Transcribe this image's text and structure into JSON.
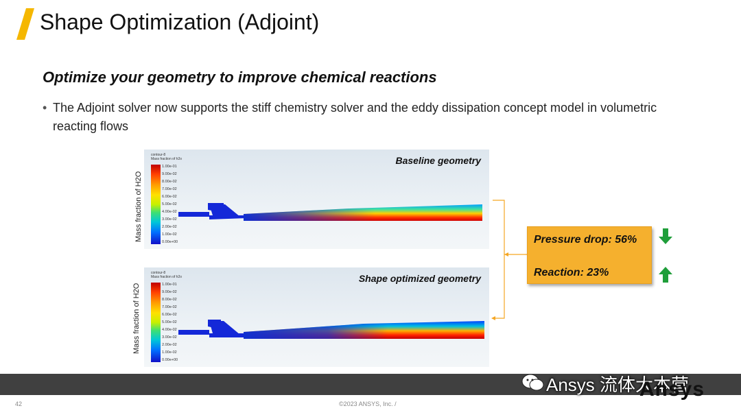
{
  "slide": {
    "title": "Shape Optimization (Adjoint)",
    "subtitle": "Optimize your geometry to improve chemical reactions",
    "bullet": "The Adjoint solver now supports the stiff chemistry solver and the eddy dissipation concept model in volumetric reacting flows",
    "bullet_symbol": "•",
    "accent_color": "#f5b700"
  },
  "panels": [
    {
      "label": "Baseline geometry",
      "y_label": "Mass fraction of H2O",
      "legend_head": [
        "contour-8",
        "Mass fraction of h2o"
      ],
      "ticks": [
        "1.00e-01",
        "9.00e-02",
        "8.00e-02",
        "7.00e-02",
        "6.00e-02",
        "5.00e-02",
        "4.00e-02",
        "3.00e-02",
        "2.00e-02",
        "1.00e-02",
        "0.00e+00"
      ]
    },
    {
      "label": "Shape optimized geometry",
      "y_label": "Mass fraction of H2O",
      "legend_head": [
        "contour-8",
        "Mass fraction of h2o"
      ],
      "ticks": [
        "1.00e-01",
        "9.00e-02",
        "8.00e-02",
        "7.00e-02",
        "6.00e-02",
        "5.00e-02",
        "4.00e-02",
        "3.00e-02",
        "2.00e-02",
        "1.00e-02",
        "0.00e+00"
      ]
    }
  ],
  "results": {
    "pressure_drop": "Pressure drop: 56%",
    "reaction": "Reaction: 23%",
    "down_color": "#1f9e3a",
    "up_color": "#1f9e3a",
    "box_color": "#f5b02e"
  },
  "footer": {
    "page_number": "42",
    "copyright": "©2023 ANSYS, Inc. /",
    "watermark": "Ansys 流体大本营",
    "logo": "Ansys"
  }
}
